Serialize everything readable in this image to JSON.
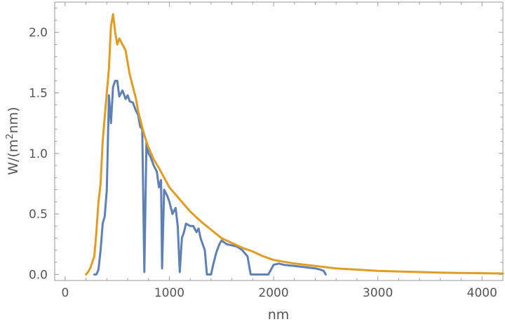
{
  "chart_data": {
    "type": "line",
    "title": "",
    "xlabel": "nm",
    "ylabel": "W/(m²nm)",
    "xlim": [
      -100,
      4200
    ],
    "ylim": [
      -0.05,
      2.25
    ],
    "x_ticks": [
      0,
      1000,
      2000,
      3000,
      4000
    ],
    "x_tick_labels": [
      "0",
      "1000",
      "2000",
      "3000",
      "4000"
    ],
    "y_ticks": [
      0.0,
      0.5,
      1.0,
      1.5,
      2.0
    ],
    "y_tick_labels": [
      "0.0",
      "0.5",
      "1.0",
      "1.5",
      "2.0"
    ],
    "grid": false,
    "colors": {
      "series1": "#5e81b5",
      "series2": "#e19c24",
      "frame": "#9a9a9a",
      "text": "#555555"
    },
    "series": [
      {
        "color": "#5e81b5",
        "x": [
          280,
          300,
          320,
          340,
          360,
          380,
          400,
          420,
          440,
          460,
          480,
          500,
          520,
          550,
          580,
          600,
          620,
          650,
          680,
          700,
          720,
          740,
          760,
          780,
          800,
          820,
          850,
          880,
          900,
          920,
          930,
          950,
          980,
          1000,
          1030,
          1060,
          1080,
          1100,
          1120,
          1140,
          1160,
          1200,
          1230,
          1260,
          1280,
          1300,
          1320,
          1340,
          1360,
          1380,
          1400,
          1420,
          1450,
          1480,
          1500,
          1550,
          1600,
          1650,
          1700,
          1750,
          1780,
          1800,
          1820,
          1850,
          1900,
          1950,
          2000,
          2050,
          2100,
          2200,
          2300,
          2400,
          2450,
          2480,
          2500
        ],
        "y": [
          0.0,
          0.0,
          0.04,
          0.2,
          0.42,
          0.48,
          0.7,
          1.48,
          1.25,
          1.55,
          1.6,
          1.6,
          1.47,
          1.52,
          1.45,
          1.48,
          1.43,
          1.42,
          1.35,
          1.32,
          1.22,
          1.2,
          0.02,
          1.1,
          1.0,
          0.97,
          0.9,
          0.85,
          0.72,
          0.78,
          0.05,
          0.7,
          0.65,
          0.6,
          0.5,
          0.55,
          0.4,
          0.02,
          0.3,
          0.35,
          0.42,
          0.4,
          0.4,
          0.35,
          0.38,
          0.3,
          0.25,
          0.2,
          0.0,
          0.0,
          0.0,
          0.08,
          0.18,
          0.25,
          0.28,
          0.25,
          0.24,
          0.23,
          0.2,
          0.15,
          0.0,
          0.0,
          0.0,
          0.0,
          0.0,
          0.0,
          0.08,
          0.09,
          0.08,
          0.07,
          0.06,
          0.05,
          0.04,
          0.03,
          0.0
        ]
      },
      {
        "color": "#e19c24",
        "x": [
          200,
          220,
          240,
          260,
          280,
          300,
          320,
          340,
          360,
          380,
          400,
          420,
          440,
          460,
          480,
          500,
          520,
          550,
          580,
          600,
          620,
          650,
          680,
          700,
          730,
          760,
          800,
          850,
          900,
          950,
          1000,
          1100,
          1200,
          1300,
          1400,
          1500,
          1600,
          1700,
          1800,
          1900,
          2000,
          2200,
          2400,
          2600,
          2800,
          3000,
          3200,
          3400,
          3600,
          3800,
          4000,
          4200
        ],
        "y": [
          0.0,
          0.02,
          0.05,
          0.1,
          0.15,
          0.35,
          0.6,
          0.75,
          1.1,
          1.3,
          1.5,
          1.7,
          2.05,
          2.15,
          2.0,
          1.9,
          1.95,
          1.9,
          1.85,
          1.75,
          1.65,
          1.55,
          1.45,
          1.35,
          1.25,
          1.15,
          1.05,
          0.95,
          0.88,
          0.8,
          0.72,
          0.62,
          0.52,
          0.44,
          0.37,
          0.3,
          0.26,
          0.22,
          0.19,
          0.15,
          0.12,
          0.09,
          0.07,
          0.05,
          0.04,
          0.03,
          0.025,
          0.02,
          0.015,
          0.012,
          0.01,
          0.008
        ]
      }
    ]
  }
}
